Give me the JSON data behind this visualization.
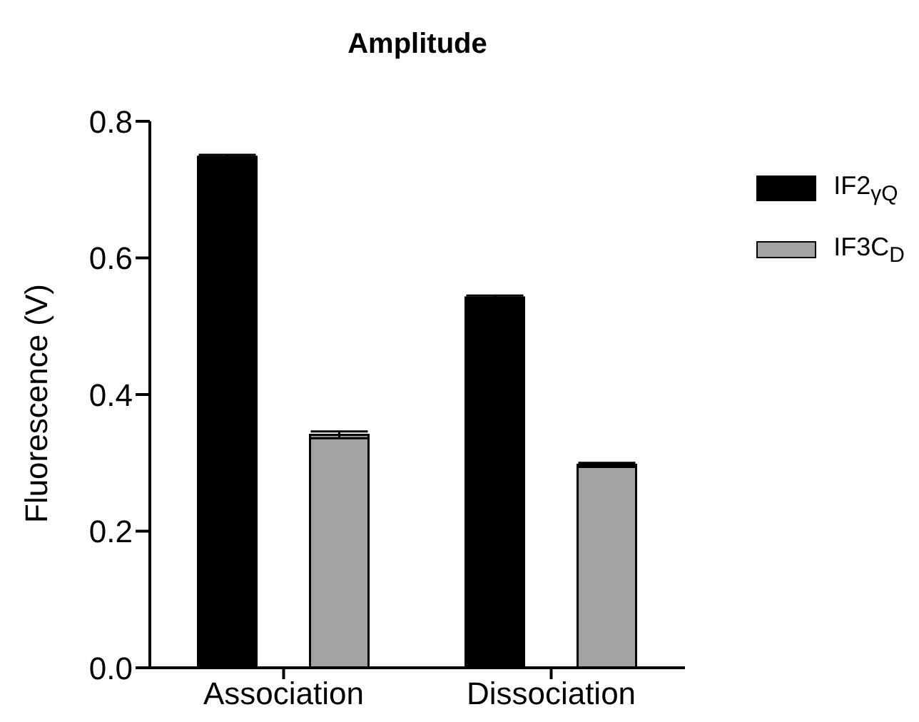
{
  "chart_data": {
    "type": "bar",
    "title": "Amplitude",
    "ylabel": "Fluorescence (V)",
    "categories": [
      "Association",
      "Dissociation"
    ],
    "series": [
      {
        "name": "IF2$_{γQ}$",
        "color": "#000000",
        "values": [
          0.748,
          0.542
        ],
        "errors": [
          0.003,
          0.003
        ]
      },
      {
        "name": "IF3C$_{D}$",
        "color": "#a3a3a6",
        "values": [
          0.341,
          0.297
        ],
        "errors": [
          0.005,
          0.003
        ]
      }
    ],
    "ylim": [
      0,
      0.8
    ],
    "yticks": [
      {
        "value": 0,
        "label": "0.0"
      },
      {
        "value": 0.2,
        "label": "0.2"
      },
      {
        "value": 0.4,
        "label": "0.4"
      },
      {
        "value": 0.6,
        "label": "0.6"
      },
      {
        "value": 0.8,
        "label": "0.8"
      }
    ],
    "grid": false,
    "legend": "top right"
  }
}
